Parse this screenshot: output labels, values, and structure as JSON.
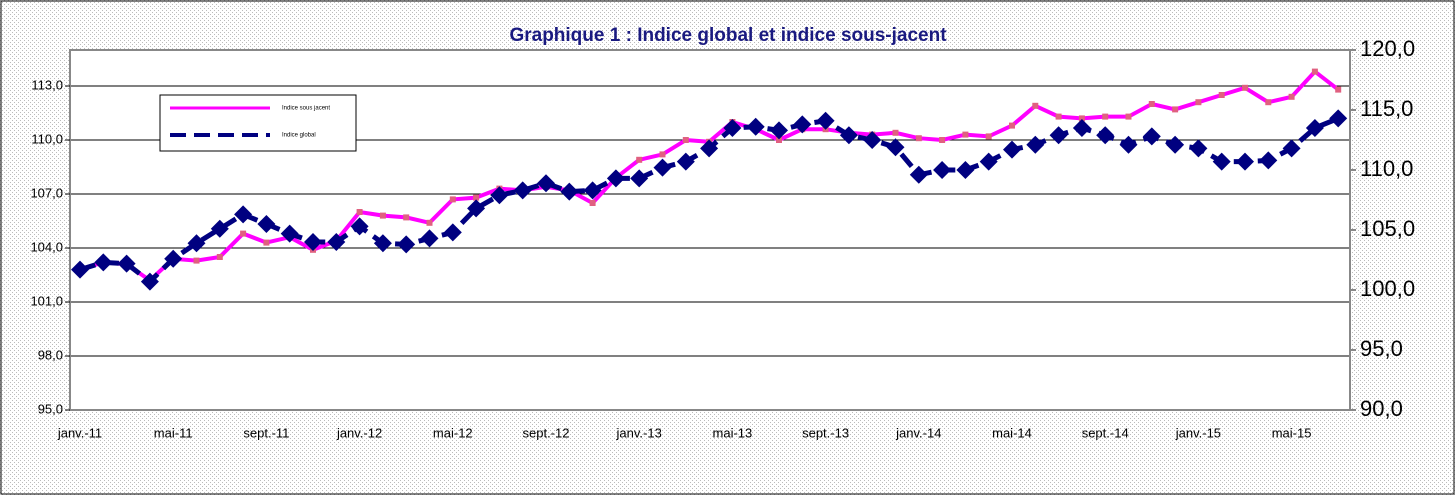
{
  "chart_data": {
    "type": "line",
    "title": "Graphique 1 : Indice global et indice sous-jacent",
    "categories": [
      "janv.-11",
      null,
      null,
      null,
      "mai-11",
      null,
      null,
      null,
      "sept.-11",
      null,
      null,
      null,
      "janv.-12",
      null,
      null,
      null,
      "mai-12",
      null,
      null,
      null,
      "sept.-12",
      null,
      null,
      null,
      "janv.-13",
      null,
      null,
      null,
      "mai-13",
      null,
      null,
      null,
      "sept.-13",
      null,
      null,
      null,
      "janv.-14",
      null,
      null,
      null,
      "mai-14",
      null,
      null,
      null,
      "sept.-14",
      null,
      null,
      null,
      "janv.-15",
      null,
      null,
      null,
      "mai-15",
      null,
      null
    ],
    "series": [
      {
        "name": "Indice sous jacent",
        "color": "#ff00ff",
        "values": [
          102.8,
          103.2,
          103.1,
          102.2,
          103.4,
          103.3,
          103.5,
          104.8,
          104.3,
          104.6,
          103.9,
          104.4,
          106.0,
          105.8,
          105.7,
          105.4,
          106.7,
          106.8,
          107.3,
          107.2,
          107.4,
          107.2,
          106.5,
          107.9,
          108.9,
          109.2,
          110.0,
          109.9,
          111.0,
          110.6,
          110.0,
          110.6,
          110.6,
          110.4,
          110.3,
          110.4,
          110.1,
          110.0,
          110.3,
          110.2,
          110.8,
          111.9,
          111.3,
          111.2,
          111.3,
          111.3,
          112.0,
          111.7,
          112.1,
          112.5,
          112.9,
          112.1,
          112.4,
          113.8,
          112.8
        ]
      },
      {
        "name": "Indice global",
        "color": "#000080",
        "axis": "y2",
        "values": [
          101.7,
          102.3,
          102.2,
          100.7,
          102.6,
          103.9,
          105.1,
          106.3,
          105.5,
          104.7,
          104.0,
          104.0,
          105.3,
          103.9,
          103.8,
          104.3,
          104.8,
          106.8,
          107.9,
          108.3,
          108.9,
          108.2,
          108.3,
          109.3,
          109.3,
          110.2,
          110.7,
          111.8,
          113.5,
          113.6,
          113.3,
          113.8,
          114.1,
          112.9,
          112.5,
          111.9,
          109.6,
          110.0,
          110.0,
          110.7,
          111.7,
          112.1,
          112.9,
          113.5,
          112.9,
          112.1,
          112.8,
          112.1,
          111.8,
          110.7,
          110.7,
          110.8,
          111.8,
          113.5,
          114.3
        ]
      }
    ],
    "ylim": [
      95,
      115
    ],
    "yticks": [
      {
        "value": 95,
        "label": "95,0"
      },
      {
        "value": 98,
        "label": "98,0"
      },
      {
        "value": 101,
        "label": "101,0"
      },
      {
        "value": 104,
        "label": "104,0"
      },
      {
        "value": 107,
        "label": "107,0"
      },
      {
        "value": 110,
        "label": "110,0"
      },
      {
        "value": 113,
        "label": "113,0"
      }
    ],
    "y2lim": [
      90,
      120
    ],
    "y2ticks": [
      {
        "value": 90,
        "label": "90,0"
      },
      {
        "value": 95,
        "label": "95,0"
      },
      {
        "value": 100,
        "label": "100,0"
      },
      {
        "value": 105,
        "label": "105,0"
      },
      {
        "value": 110,
        "label": "110,0"
      },
      {
        "value": 115,
        "label": "115,0"
      },
      {
        "value": 120,
        "label": "120,0"
      }
    ],
    "grid": true
  }
}
